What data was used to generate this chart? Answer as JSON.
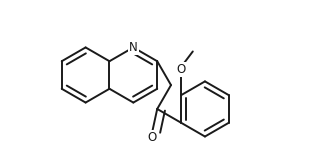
{
  "bg_color": "#ffffff",
  "line_color": "#1a1a1a",
  "line_width": 1.4,
  "font_size": 8.5,
  "fig_width": 3.27,
  "fig_height": 1.5,
  "dpi": 100,
  "xlim": [
    0.0,
    1.0
  ],
  "ylim": [
    0.0,
    0.62
  ],
  "ring_r": 0.115,
  "double_off": 0.022,
  "double_shorten": 0.1
}
